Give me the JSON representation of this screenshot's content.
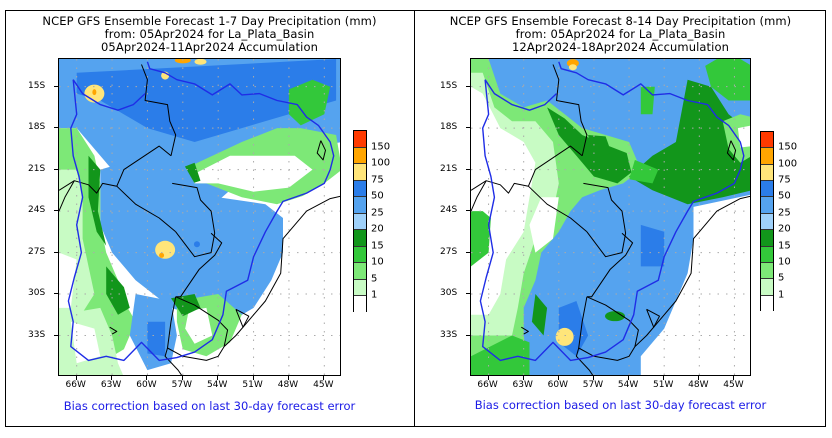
{
  "chart_data": [
    {
      "type": "heatmap",
      "title": "NCEP GFS Ensemble Forecast 1-7 Day Precipitation (mm)",
      "subtitle_1": "from: 05Apr2024   for La_Plata_Basin",
      "subtitle_2": "05Apr2024-11Apr2024 Accumulation",
      "footer": "Bias correction based on last 30-day forecast error",
      "lat_ticks": [
        "15S",
        "18S",
        "21S",
        "24S",
        "27S",
        "30S",
        "33S"
      ],
      "lon_ticks": [
        "66W",
        "63W",
        "60W",
        "57W",
        "54W",
        "51W",
        "48W",
        "45W"
      ],
      "lat_range": [
        -36,
        -13
      ],
      "lon_range": [
        -67.5,
        -43.5
      ],
      "legend_levels": [
        "150",
        "100",
        "75",
        "50",
        "25",
        "20",
        "15",
        "10",
        "5",
        "1"
      ],
      "legend_colors": [
        "#ff3a00",
        "#ffa500",
        "#ffe57a",
        "#2b7de9",
        "#55a3ef",
        "#9fd1fa",
        "#12961b",
        "#33c83a",
        "#7de877",
        "#c8fbc4",
        "#ffffff"
      ],
      "legend_placement": "right"
    },
    {
      "type": "heatmap",
      "title": "NCEP GFS Ensemble Forecast 8-14 Day Precipitation (mm)",
      "subtitle_1": "from: 05Apr2024   for La_Plata_Basin",
      "subtitle_2": "12Apr2024-18Apr2024 Accumulation",
      "footer": "Bias correction based on last 30-day forecast error",
      "lat_ticks": [
        "15S",
        "18S",
        "21S",
        "24S",
        "27S",
        "30S",
        "33S"
      ],
      "lon_ticks": [
        "66W",
        "63W",
        "60W",
        "57W",
        "54W",
        "51W",
        "48W",
        "45W"
      ],
      "lat_range": [
        -36,
        -13
      ],
      "lon_range": [
        -67.5,
        -43.5
      ],
      "legend_levels": [
        "150",
        "100",
        "75",
        "50",
        "25",
        "20",
        "15",
        "10",
        "5",
        "1"
      ],
      "legend_colors": [
        "#ff3a00",
        "#ffa500",
        "#ffe57a",
        "#2b7de9",
        "#55a3ef",
        "#9fd1fa",
        "#12961b",
        "#33c83a",
        "#7de877",
        "#c8fbc4",
        "#ffffff"
      ],
      "legend_placement": "right"
    }
  ]
}
